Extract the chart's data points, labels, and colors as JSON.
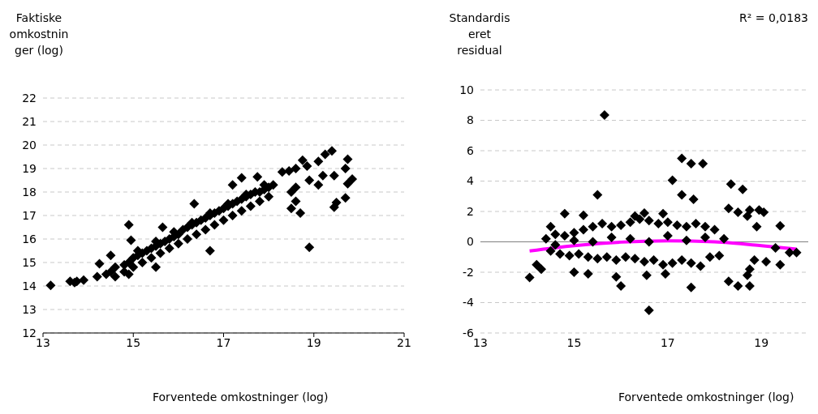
{
  "chart_data": [
    {
      "type": "scatter",
      "ylabel": "Faktiske omkostninger (log)",
      "xlabel": "Forventede omkostninger (log)",
      "xlim": [
        13,
        21
      ],
      "xticks": [
        13,
        15,
        17,
        19,
        21
      ],
      "ylim": [
        12,
        22
      ],
      "yticks": [
        12,
        13,
        14,
        15,
        16,
        17,
        18,
        19,
        20,
        21,
        22
      ],
      "grid": "y",
      "series": [
        {
          "color": "#000000",
          "marker": "diamond",
          "x": [
            13.17,
            13.6,
            13.7,
            13.75,
            13.9,
            14.25,
            14.5,
            14.9,
            14.95,
            15.5,
            14.9,
            15.65,
            16.35,
            16.7,
            18.9,
            17.2,
            17.4,
            17.75,
            18.3,
            18.75,
            19.1,
            19.25,
            19.4,
            19.75,
            19.7,
            19.85,
            19.75,
            19.7,
            19.45,
            19.5,
            18.5,
            18.7,
            18.6,
            18.5,
            18.6,
            18.9,
            19.1,
            19.2,
            19.45,
            18.85,
            18.6,
            18.45,
            14.2,
            14.4,
            14.5,
            14.6,
            14.8,
            14.9,
            15.0,
            15.1,
            15.2,
            15.3,
            15.4,
            15.5,
            15.6,
            15.7,
            15.8,
            15.9,
            16.0,
            16.1,
            16.2,
            16.3,
            16.4,
            16.5,
            16.6,
            16.7,
            16.8,
            16.9,
            17.0,
            17.1,
            17.2,
            17.3,
            17.4,
            17.5,
            17.6,
            17.7,
            17.8,
            17.9,
            18.0,
            18.1,
            14.6,
            14.8,
            15.0,
            15.2,
            15.4,
            15.6,
            15.8,
            16.0,
            16.2,
            16.4,
            16.6,
            16.8,
            17.0,
            17.2,
            17.4,
            17.6,
            17.8,
            18.0,
            15.1,
            15.5,
            15.9,
            16.3,
            16.7,
            17.1,
            17.5,
            17.9
          ],
          "values": [
            14.03,
            14.2,
            14.15,
            14.2,
            14.25,
            14.95,
            15.3,
            16.6,
            15.95,
            14.8,
            14.5,
            16.5,
            17.5,
            15.5,
            15.65,
            18.3,
            18.6,
            18.65,
            18.85,
            19.35,
            19.3,
            19.6,
            19.75,
            19.4,
            19.0,
            18.55,
            18.35,
            17.75,
            17.35,
            17.55,
            17.3,
            17.1,
            17.6,
            18.0,
            18.2,
            18.5,
            18.3,
            18.7,
            18.7,
            19.1,
            19.0,
            18.9,
            14.4,
            14.5,
            14.6,
            14.8,
            14.9,
            15.0,
            15.2,
            15.3,
            15.4,
            15.5,
            15.6,
            15.7,
            15.8,
            15.9,
            16.0,
            16.1,
            16.2,
            16.4,
            16.5,
            16.6,
            16.7,
            16.8,
            16.9,
            17.0,
            17.1,
            17.2,
            17.3,
            17.4,
            17.5,
            17.6,
            17.7,
            17.8,
            17.9,
            18.0,
            18.0,
            18.1,
            18.2,
            18.3,
            14.4,
            14.6,
            14.8,
            15.0,
            15.2,
            15.4,
            15.6,
            15.8,
            16.0,
            16.2,
            16.4,
            16.6,
            16.8,
            17.0,
            17.2,
            17.4,
            17.6,
            17.8,
            15.5,
            15.9,
            16.3,
            16.7,
            17.1,
            17.5,
            17.9,
            18.3
          ]
        }
      ]
    },
    {
      "type": "scatter",
      "ylabel": "Standardiseret residual",
      "xlabel": "Forventede omkostninger (log)",
      "annotations": [
        "R² = 0,0183"
      ],
      "xlim": [
        13,
        20
      ],
      "xticks": [
        13,
        15,
        17,
        19
      ],
      "ylim": [
        -6,
        10
      ],
      "yticks": [
        -6,
        -4,
        -2,
        0,
        2,
        4,
        6,
        8,
        10
      ],
      "grid": "y",
      "ref_lines": [
        {
          "axis": "y",
          "value": 0,
          "color": "#808080",
          "line_style": "solid"
        }
      ],
      "series": [
        {
          "color": "#000000",
          "marker": "diamond",
          "x": [
            15.65,
            15.5,
            17.3,
            17.5,
            17.75,
            17.1,
            17.3,
            17.55,
            18.35,
            18.6,
            18.3,
            18.5,
            18.75,
            18.95,
            19.05,
            19.4,
            18.9,
            14.05,
            14.2,
            14.3,
            15.0,
            15.3,
            16.0,
            16.55,
            16.6,
            17.5,
            18.3,
            18.5,
            18.75,
            18.7,
            18.75,
            19.4,
            19.75,
            19.6,
            19.1,
            18.85,
            14.5,
            14.8,
            15.2,
            16.5,
            16.9,
            16.3,
            18.7,
            19.3,
            15.9,
            16.95,
            14.4,
            14.6,
            14.8,
            15.0,
            15.2,
            15.4,
            15.6,
            15.8,
            16.0,
            16.2,
            16.4,
            16.6,
            16.8,
            17.0,
            17.2,
            17.4,
            17.6,
            17.8,
            18.0,
            14.5,
            14.7,
            14.9,
            15.1,
            15.3,
            15.5,
            15.7,
            15.9,
            16.1,
            16.3,
            16.5,
            16.7,
            16.9,
            17.1,
            17.3,
            17.5,
            17.7,
            17.9,
            18.1,
            14.6,
            15.0,
            15.4,
            15.8,
            16.2,
            16.6,
            17.0,
            17.4,
            17.8,
            18.2
          ],
          "values": [
            8.35,
            3.1,
            5.5,
            5.15,
            5.15,
            4.05,
            3.1,
            2.8,
            3.8,
            3.45,
            2.2,
            1.95,
            2.1,
            2.1,
            1.95,
            1.05,
            1.0,
            -2.35,
            -1.5,
            -1.8,
            -2.0,
            -2.1,
            -2.9,
            -2.2,
            -4.5,
            -3.0,
            -2.6,
            -2.9,
            -2.9,
            -2.2,
            -1.8,
            -1.5,
            -0.7,
            -0.7,
            -1.3,
            -1.2,
            1.0,
            1.85,
            1.75,
            1.9,
            1.85,
            1.7,
            1.7,
            -0.4,
            -2.3,
            -2.1,
            0.2,
            0.5,
            0.4,
            0.6,
            0.8,
            1.0,
            1.2,
            1.0,
            1.1,
            1.3,
            1.5,
            1.4,
            1.2,
            1.3,
            1.1,
            1.0,
            1.2,
            1.0,
            0.8,
            -0.6,
            -0.8,
            -0.9,
            -0.8,
            -1.0,
            -1.1,
            -1.0,
            -1.2,
            -1.0,
            -1.1,
            -1.3,
            -1.2,
            -1.5,
            -1.4,
            -1.2,
            -1.4,
            -1.6,
            -1.0,
            -0.9,
            -0.2,
            0.1,
            0.0,
            0.3,
            0.2,
            0.0,
            0.4,
            0.1,
            0.3,
            0.2
          ]
        },
        {
          "type": "line",
          "marker": "none",
          "color": "#ff00ff",
          "x": [
            14.05,
            15,
            16,
            17,
            18,
            19,
            19.75
          ],
          "values": [
            -0.6,
            -0.25,
            -0.02,
            0.07,
            0.0,
            -0.25,
            -0.48
          ]
        }
      ]
    }
  ]
}
